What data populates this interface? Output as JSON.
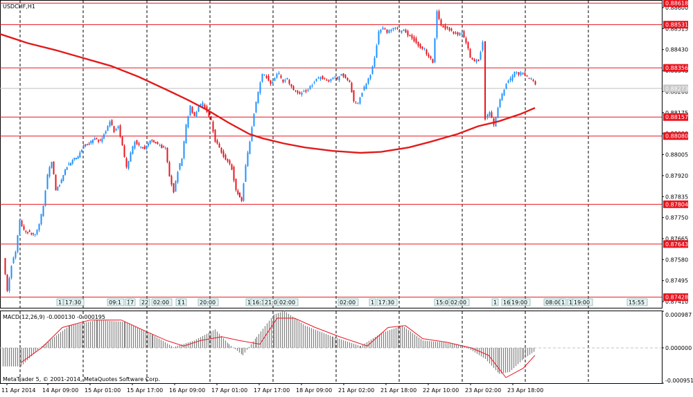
{
  "window": {
    "symbol_label": "USDCHF,H1",
    "macd_label": "MACD(12,26,9) -0.000130 -0.000195",
    "copyright": "MetaTrader 5, © 2001-2014, MetaQuotes Software Corp."
  },
  "colors": {
    "bull": "#1e90ff",
    "bear": "#e8141e",
    "level_line": "#e8141e",
    "ma": "#e11b1b",
    "grid": "#000000",
    "signal": "#e8141e",
    "histogram": "#808080",
    "price_tag": "#c8c8c8"
  },
  "chart_data": [
    {
      "type": "candlestick",
      "title": "USDCHF,H1",
      "ylim": [
        0.87385,
        0.88628
      ],
      "y_ticks": [
        "0.88600",
        "0.88515",
        "0.88430",
        "0.88345",
        "0.88260",
        "0.88175",
        "0.88090",
        "0.88005",
        "0.87920",
        "0.87835",
        "0.87750",
        "0.87665",
        "0.87580",
        "0.87495",
        "0.87410"
      ],
      "x_ticks": [
        "11 Apr 2014",
        "14 Apr 09:00",
        "15 Apr 01:00",
        "15 Apr 17:00",
        "16 Apr 09:00",
        "17 Apr 01:00",
        "17 Apr 17:00",
        "18 Apr 09:00",
        "21 Apr 02:00",
        "21 Apr 18:00",
        "22 Apr 10:00",
        "23 Apr 02:00",
        "23 Apr 18:00"
      ],
      "horizontal_levels": [
        "0.88618",
        "0.88531",
        "0.88356",
        "0.88157",
        "0.88080",
        "0.87804",
        "0.87643",
        "0.87428"
      ],
      "current_price": "0.88273",
      "moving_average_path": [
        [
          0,
          0.88493
        ],
        [
          40,
          0.88456
        ],
        [
          80,
          0.88428
        ],
        [
          120,
          0.88396
        ],
        [
          160,
          0.88364
        ],
        [
          200,
          0.8832
        ],
        [
          240,
          0.88268
        ],
        [
          270,
          0.88228
        ],
        [
          300,
          0.88184
        ],
        [
          330,
          0.88134
        ],
        [
          360,
          0.88088
        ],
        [
          380,
          0.8807
        ],
        [
          410,
          0.8805
        ],
        [
          440,
          0.88034
        ],
        [
          480,
          0.8802
        ],
        [
          520,
          0.88012
        ],
        [
          550,
          0.88016
        ],
        [
          590,
          0.88034
        ],
        [
          620,
          0.88056
        ],
        [
          660,
          0.88088
        ],
        [
          690,
          0.8812
        ],
        [
          720,
          0.8814
        ],
        [
          750,
          0.88168
        ],
        [
          772,
          0.88194
        ]
      ],
      "candle_path": [
        [
          6,
          0.8758
        ],
        [
          12,
          0.8745
        ],
        [
          18,
          0.8756
        ],
        [
          24,
          0.8761
        ],
        [
          30,
          0.8774
        ],
        [
          36,
          0.877
        ],
        [
          44,
          0.8769
        ],
        [
          52,
          0.8768
        ],
        [
          58,
          0.8772
        ],
        [
          64,
          0.878
        ],
        [
          70,
          0.8792
        ],
        [
          76,
          0.8798
        ],
        [
          82,
          0.8786
        ],
        [
          90,
          0.879
        ],
        [
          98,
          0.8796
        ],
        [
          106,
          0.8798
        ],
        [
          114,
          0.88
        ],
        [
          122,
          0.8804
        ],
        [
          130,
          0.8805
        ],
        [
          138,
          0.8807
        ],
        [
          146,
          0.8806
        ],
        [
          154,
          0.881
        ],
        [
          160,
          0.8814
        ],
        [
          166,
          0.881
        ],
        [
          172,
          0.8812
        ],
        [
          178,
          0.8804
        ],
        [
          184,
          0.8795
        ],
        [
          190,
          0.8801
        ],
        [
          196,
          0.8806
        ],
        [
          202,
          0.8804
        ],
        [
          210,
          0.8803
        ],
        [
          218,
          0.8806
        ],
        [
          226,
          0.8805
        ],
        [
          232,
          0.8804
        ],
        [
          240,
          0.8803
        ],
        [
          246,
          0.8792
        ],
        [
          252,
          0.8785
        ],
        [
          258,
          0.8794
        ],
        [
          264,
          0.8799
        ],
        [
          270,
          0.8812
        ],
        [
          276,
          0.882
        ],
        [
          282,
          0.8816
        ],
        [
          288,
          0.882
        ],
        [
          294,
          0.8821
        ],
        [
          300,
          0.8818
        ],
        [
          306,
          0.8814
        ],
        [
          312,
          0.8806
        ],
        [
          318,
          0.8803
        ],
        [
          324,
          0.88
        ],
        [
          330,
          0.8798
        ],
        [
          336,
          0.8795
        ],
        [
          342,
          0.8786
        ],
        [
          350,
          0.8782
        ],
        [
          356,
          0.8796
        ],
        [
          362,
          0.8806
        ],
        [
          368,
          0.8817
        ],
        [
          374,
          0.8826
        ],
        [
          380,
          0.8833
        ],
        [
          386,
          0.8832
        ],
        [
          392,
          0.8829
        ],
        [
          398,
          0.8832
        ],
        [
          404,
          0.8833
        ],
        [
          410,
          0.883
        ],
        [
          416,
          0.8831
        ],
        [
          422,
          0.8828
        ],
        [
          428,
          0.8826
        ],
        [
          434,
          0.8825
        ],
        [
          440,
          0.8826
        ],
        [
          446,
          0.8827
        ],
        [
          452,
          0.8829
        ],
        [
          458,
          0.8831
        ],
        [
          464,
          0.8832
        ],
        [
          470,
          0.8831
        ],
        [
          476,
          0.883
        ],
        [
          482,
          0.8832
        ],
        [
          488,
          0.8831
        ],
        [
          494,
          0.8833
        ],
        [
          500,
          0.8832
        ],
        [
          506,
          0.883
        ],
        [
          512,
          0.8822
        ],
        [
          518,
          0.8821
        ],
        [
          524,
          0.8826
        ],
        [
          530,
          0.8829
        ],
        [
          536,
          0.8833
        ],
        [
          542,
          0.884
        ],
        [
          548,
          0.885
        ],
        [
          554,
          0.8852
        ],
        [
          560,
          0.885
        ],
        [
          566,
          0.8851
        ],
        [
          572,
          0.8852
        ],
        [
          578,
          0.885
        ],
        [
          584,
          0.8851
        ],
        [
          590,
          0.8849
        ],
        [
          596,
          0.8848
        ],
        [
          602,
          0.8846
        ],
        [
          608,
          0.8844
        ],
        [
          614,
          0.8843
        ],
        [
          620,
          0.884
        ],
        [
          626,
          0.8838
        ],
        [
          632,
          0.8858
        ],
        [
          638,
          0.8853
        ],
        [
          644,
          0.8852
        ],
        [
          650,
          0.8851
        ],
        [
          656,
          0.885
        ],
        [
          662,
          0.8849
        ],
        [
          668,
          0.885
        ],
        [
          674,
          0.8846
        ],
        [
          680,
          0.884
        ],
        [
          686,
          0.8838
        ],
        [
          692,
          0.8839
        ],
        [
          698,
          0.8846
        ],
        [
          702,
          0.8815
        ],
        [
          708,
          0.8818
        ],
        [
          714,
          0.8812
        ],
        [
          720,
          0.882
        ],
        [
          726,
          0.8825
        ],
        [
          732,
          0.8829
        ],
        [
          738,
          0.8831
        ],
        [
          744,
          0.8834
        ],
        [
          750,
          0.8833
        ],
        [
          756,
          0.8834
        ],
        [
          762,
          0.8832
        ],
        [
          768,
          0.8831
        ],
        [
          774,
          0.88285
        ]
      ]
    },
    {
      "type": "bar",
      "title": "MACD(12,26,9) -0.000130 -0.000195",
      "ylim": [
        -0.000951,
        0.000987
      ],
      "y_ticks": [
        "0.000987",
        "0.000000",
        "-0.000951"
      ],
      "histogram_path": [
        [
          4,
          -0.0005
        ],
        [
          30,
          -0.0005
        ],
        [
          60,
          5e-05
        ],
        [
          100,
          0.0006
        ],
        [
          140,
          0.00075
        ],
        [
          180,
          0.0007
        ],
        [
          220,
          0.00035
        ],
        [
          250,
          2e-05
        ],
        [
          280,
          0.0002
        ],
        [
          310,
          0.0005
        ],
        [
          330,
          0.0001
        ],
        [
          350,
          -0.0002
        ],
        [
          370,
          0.0003
        ],
        [
          395,
          0.0009
        ],
        [
          410,
          0.001
        ],
        [
          440,
          0.0006
        ],
        [
          480,
          0.0003
        ],
        [
          520,
          5e-05
        ],
        [
          550,
          0.0004
        ],
        [
          580,
          0.0006
        ],
        [
          610,
          0.0002
        ],
        [
          640,
          0.00015
        ],
        [
          670,
          5e-05
        ],
        [
          700,
          -0.0003
        ],
        [
          720,
          -0.0007
        ],
        [
          735,
          -0.00065
        ],
        [
          755,
          -0.0003
        ],
        [
          772,
          -8e-05
        ]
      ],
      "signal_path": [
        [
          30,
          -0.0004
        ],
        [
          60,
          0.0
        ],
        [
          90,
          0.00055
        ],
        [
          130,
          0.00075
        ],
        [
          175,
          0.00075
        ],
        [
          210,
          0.00045
        ],
        [
          240,
          0.0002
        ],
        [
          265,
          5e-05
        ],
        [
          290,
          0.0002
        ],
        [
          320,
          0.0003
        ],
        [
          345,
          0.0002
        ],
        [
          375,
          0.0001
        ],
        [
          400,
          0.0008
        ],
        [
          425,
          0.0008
        ],
        [
          455,
          0.00055
        ],
        [
          490,
          0.0003
        ],
        [
          530,
          5e-05
        ],
        [
          560,
          0.00055
        ],
        [
          585,
          0.0006
        ],
        [
          610,
          0.00025
        ],
        [
          645,
          0.00015
        ],
        [
          680,
          0.0
        ],
        [
          705,
          -0.0002
        ],
        [
          730,
          -0.0008
        ],
        [
          755,
          -0.00055
        ],
        [
          772,
          -0.0002
        ]
      ]
    }
  ],
  "event_labels": {
    "top_row": [
      "1",
      "17:30",
      "09:1",
      "1",
      "7",
      "22",
      "02:00",
      "1",
      "1",
      "20:00",
      "1",
      "16:3",
      "21:0",
      "02:00",
      "02:00",
      "1",
      "17:30",
      "15:07",
      "02:00",
      "1",
      "16",
      "19:00",
      "08:00",
      "1",
      "1",
      "19:00",
      "15:55"
    ]
  }
}
